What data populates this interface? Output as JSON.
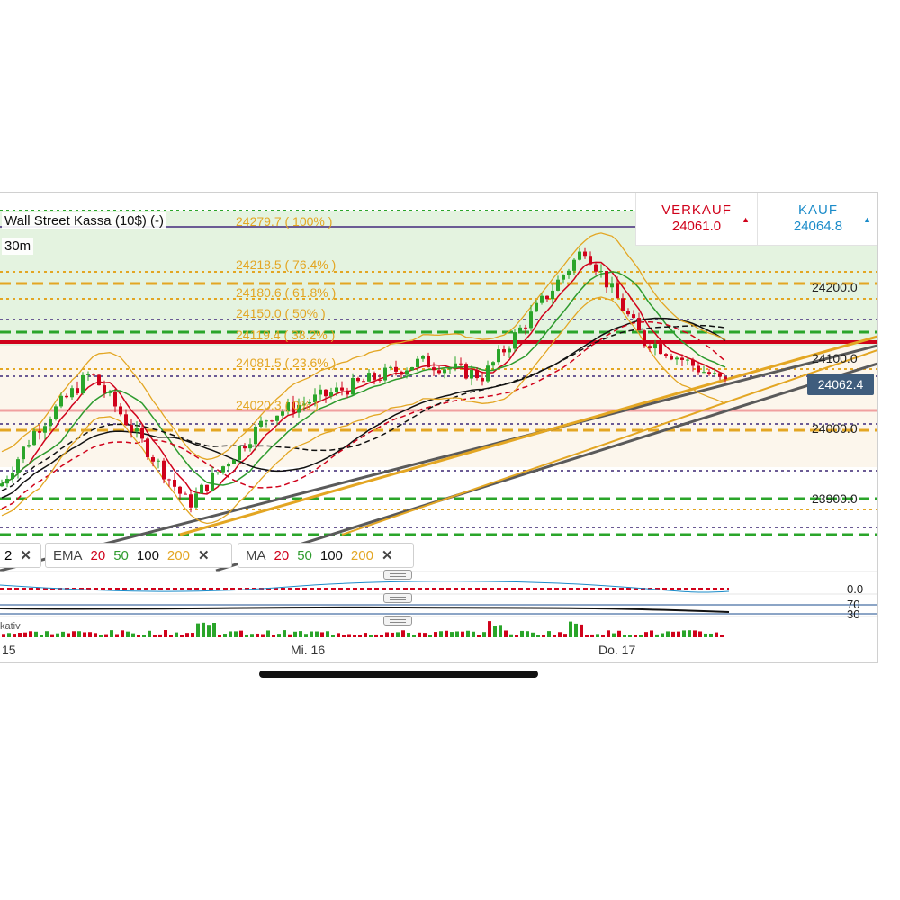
{
  "symbol": {
    "title": "Wall Street Kassa (10$) (-)",
    "timeframe": "30m"
  },
  "quote": {
    "sell": {
      "label": "VERKAUF",
      "value": "24061.0",
      "arrow": "▲"
    },
    "buy": {
      "label": "KAUF",
      "value": "24064.8",
      "arrow": "▲"
    }
  },
  "price_axis": [
    "24200.0",
    "24100.0",
    "24000.0",
    "23900.0"
  ],
  "current_price": "24062.4",
  "fibonacci": [
    {
      "label": "24279.7 ( 100% )"
    },
    {
      "label": "24218.5 ( 76.4% )"
    },
    {
      "label": "24180.6 ( 61.8% )"
    },
    {
      "label": "24150.0 ( 50% )"
    },
    {
      "label": "24119.4 ( 38.2% )"
    },
    {
      "label": "24081.5 ( 23.6% )"
    },
    {
      "label": "24020.3 ( 0% )"
    }
  ],
  "legends": {
    "bb": {
      "prefix": "2"
    },
    "ema": {
      "name": "EMA",
      "periods": [
        "20",
        "50",
        "100",
        "200"
      ]
    },
    "ma": {
      "name": "MA",
      "periods": [
        "20",
        "50",
        "100",
        "200"
      ]
    },
    "close_glyph": "✕",
    "period_colors": [
      "#d0021b",
      "#2e9b2e",
      "#111111",
      "#e3a623"
    ]
  },
  "oscillators": {
    "macd_zero": "0.0",
    "rsi_upper": "70",
    "rsi_lower": "30",
    "volume_pane_name": "kativ"
  },
  "x_axis": [
    "15",
    "Mi. 16",
    "Do. 17"
  ],
  "colors": {
    "bull": "#2aa52a",
    "bear": "#d0021b",
    "fib": "#e3a623",
    "trend": "#5a5a5a",
    "zone": "#e4f3e0"
  }
}
